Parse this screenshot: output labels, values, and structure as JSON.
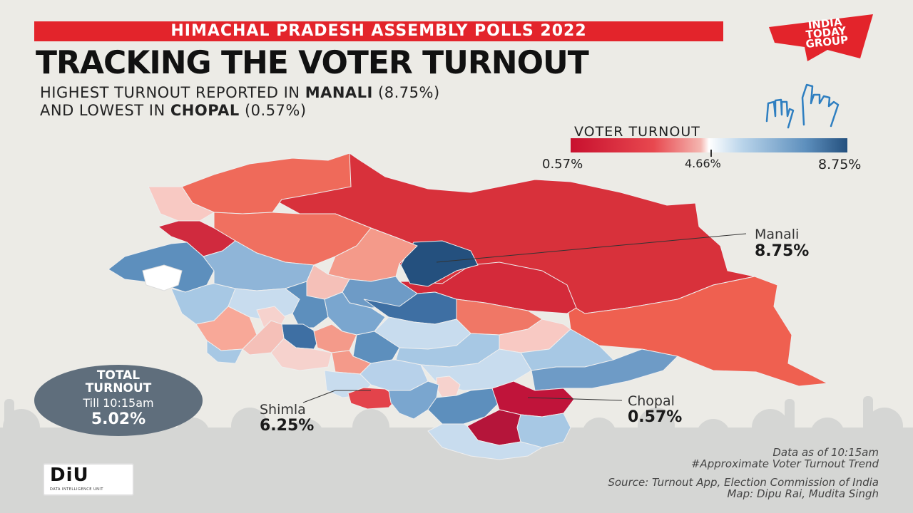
{
  "header": {
    "banner": "HIMACHAL PRADESH ASSEMBLY POLLS 2022",
    "title": "TRACKING THE VOTER TURNOUT",
    "subtitle_line1_pre": "HIGHEST TURNOUT REPORTED IN ",
    "subtitle_line1_bold": "MANALI",
    "subtitle_line1_post": "  (8.75%)",
    "subtitle_line2_pre": "AND LOWEST IN ",
    "subtitle_line2_bold": "CHOPAL",
    "subtitle_line2_post": " (0.57%)"
  },
  "logo": {
    "line1": "INDIA",
    "line2": "TODAY",
    "line3": "GROUP",
    "color": "#e3242b"
  },
  "legend": {
    "title": "VOTER TURNOUT",
    "min_label": "0.57%",
    "mid_label": "4.66%",
    "max_label": "8.75%",
    "low_color": "#c8102e",
    "mid_color": "#ffffff",
    "high_color": "#24507e"
  },
  "callouts": {
    "manali": {
      "name": "Manali",
      "value": "8.75%"
    },
    "chopal": {
      "name": "Chopal",
      "value": "0.57%"
    },
    "shimla": {
      "name": "Shimla",
      "value": "6.25%"
    }
  },
  "total": {
    "line1": "TOTAL",
    "line2": "TURNOUT",
    "line3": "Till 10:15am",
    "value": "5.02%"
  },
  "branding": {
    "diu": "DiU",
    "diu_sub": "DATA INTELLIGENCE UNIT"
  },
  "notes": {
    "data_as_of": "Data as of 10:15am",
    "trend": "#Approximate Voter Turnout Trend",
    "source": "Source: Turnout App, Election Commission of India",
    "map_credit": "Map: Dipu Rai, Mudita Singh"
  }
}
